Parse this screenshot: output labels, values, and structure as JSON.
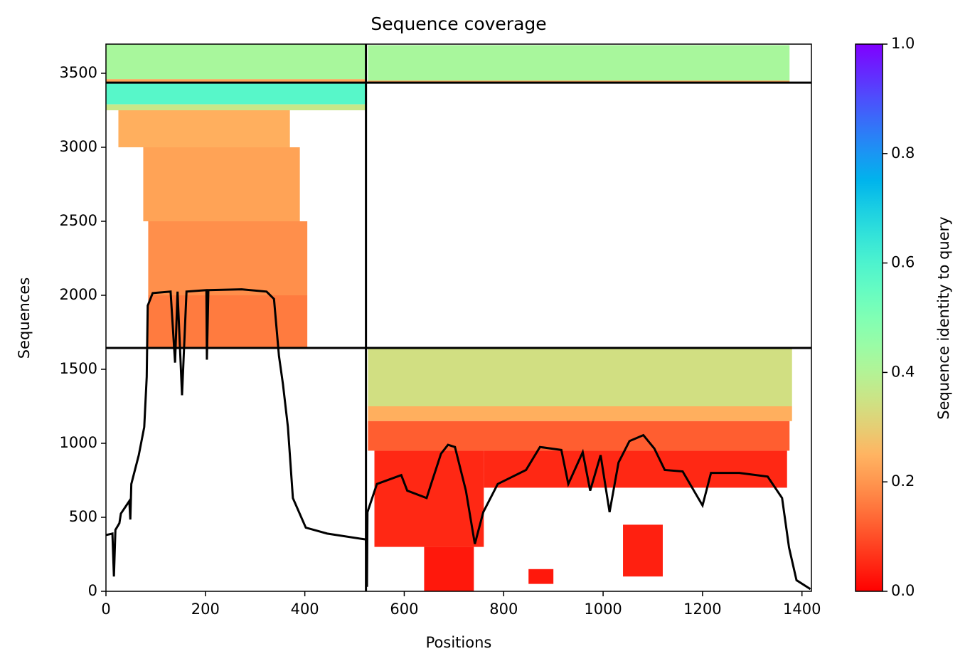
{
  "chart_data": {
    "type": "coverage",
    "title": "Sequence coverage",
    "xlabel": "Positions",
    "ylabel": "Sequences",
    "colorbar_label": "Sequence identity to query",
    "xlim": [
      0,
      1419
    ],
    "ylim": [
      0,
      3697
    ],
    "xticks": [
      0,
      200,
      400,
      600,
      800,
      1000,
      1200,
      1400
    ],
    "yticks": [
      0,
      500,
      1000,
      1500,
      2000,
      2500,
      3000,
      3500
    ],
    "clim": [
      0,
      1
    ],
    "cticks": [
      {
        "value": 0,
        "label": "0.0"
      },
      {
        "value": 0.2,
        "label": "0.2"
      },
      {
        "value": 0.4,
        "label": "0.4"
      },
      {
        "value": 0.6,
        "label": "0.6"
      },
      {
        "value": 0.8,
        "label": "0.8"
      },
      {
        "value": 1,
        "label": "1.0"
      }
    ],
    "colormap": "rainbow_r",
    "hlines": [
      1644,
      3437
    ],
    "vlines": [
      523
    ],
    "line_color": "#000000",
    "blocks": [
      {
        "x0": 0,
        "x1": 523,
        "y0": 3460,
        "y1": 3697,
        "identity": 0.42
      },
      {
        "x0": 0,
        "x1": 523,
        "y0": 3440,
        "y1": 3460,
        "identity": 0.22
      },
      {
        "x0": 527,
        "x1": 1375,
        "y0": 3450,
        "y1": 3690,
        "identity": 0.42
      },
      {
        "x0": 527,
        "x1": 1375,
        "y0": 3437,
        "y1": 3450,
        "identity": 0.22
      },
      {
        "x0": 0,
        "x1": 523,
        "y0": 3290,
        "y1": 3437,
        "identity": 0.58
      },
      {
        "x0": 0,
        "x1": 523,
        "y0": 3250,
        "y1": 3290,
        "identity": 0.36
      },
      {
        "x0": 25,
        "x1": 370,
        "y0": 3000,
        "y1": 3250,
        "identity": 0.24
      },
      {
        "x0": 75,
        "x1": 390,
        "y0": 2500,
        "y1": 3000,
        "identity": 0.22
      },
      {
        "x0": 85,
        "x1": 405,
        "y0": 2000,
        "y1": 2500,
        "identity": 0.19
      },
      {
        "x0": 85,
        "x1": 405,
        "y0": 1644,
        "y1": 2000,
        "identity": 0.16
      },
      {
        "x0": 527,
        "x1": 1380,
        "y0": 1250,
        "y1": 1644,
        "identity": 0.34
      },
      {
        "x0": 527,
        "x1": 1380,
        "y0": 1150,
        "y1": 1250,
        "identity": 0.24
      },
      {
        "x0": 527,
        "x1": 1375,
        "y0": 950,
        "y1": 1150,
        "identity": 0.12
      },
      {
        "x0": 540,
        "x1": 760,
        "y0": 300,
        "y1": 950,
        "identity": 0.05
      },
      {
        "x0": 640,
        "x1": 740,
        "y0": 0,
        "y1": 300,
        "identity": 0.03
      },
      {
        "x0": 850,
        "x1": 900,
        "y0": 50,
        "y1": 150,
        "identity": 0.03
      },
      {
        "x0": 1040,
        "x1": 1120,
        "y0": 100,
        "y1": 450,
        "identity": 0.04
      },
      {
        "x0": 760,
        "x1": 1370,
        "y0": 700,
        "y1": 950,
        "identity": 0.05
      }
    ],
    "x": [
      0,
      13,
      16,
      19,
      27,
      30,
      41,
      47,
      49,
      51,
      66,
      77,
      82,
      84,
      94,
      130,
      139,
      144,
      153,
      162,
      202,
      203,
      206,
      273,
      323,
      338,
      348,
      356,
      366,
      376,
      402,
      445,
      523,
      525,
      526,
      545,
      594,
      606,
      645,
      655,
      674,
      688,
      702,
      724,
      742,
      759,
      788,
      845,
      873,
      916,
      930,
      959,
      974,
      995,
      1013,
      1031,
      1053,
      1081,
      1103,
      1124,
      1160,
      1200,
      1217,
      1274,
      1331,
      1360,
      1374,
      1389,
      1417
    ],
    "values": [
      380,
      390,
      100,
      415,
      460,
      525,
      580,
      610,
      485,
      725,
      920,
      1110,
      1450,
      1930,
      2015,
      2025,
      1545,
      2025,
      1325,
      2025,
      2035,
      1565,
      2035,
      2040,
      2025,
      1975,
      1590,
      1400,
      1110,
      630,
      430,
      390,
      350,
      30,
      535,
      725,
      785,
      680,
      630,
      735,
      930,
      990,
      975,
      680,
      320,
      535,
      725,
      820,
      975,
      955,
      725,
      940,
      680,
      920,
      535,
      870,
      1015,
      1055,
      965,
      820,
      810,
      580,
      800,
      800,
      775,
      630,
      295,
      75,
      15
    ]
  }
}
